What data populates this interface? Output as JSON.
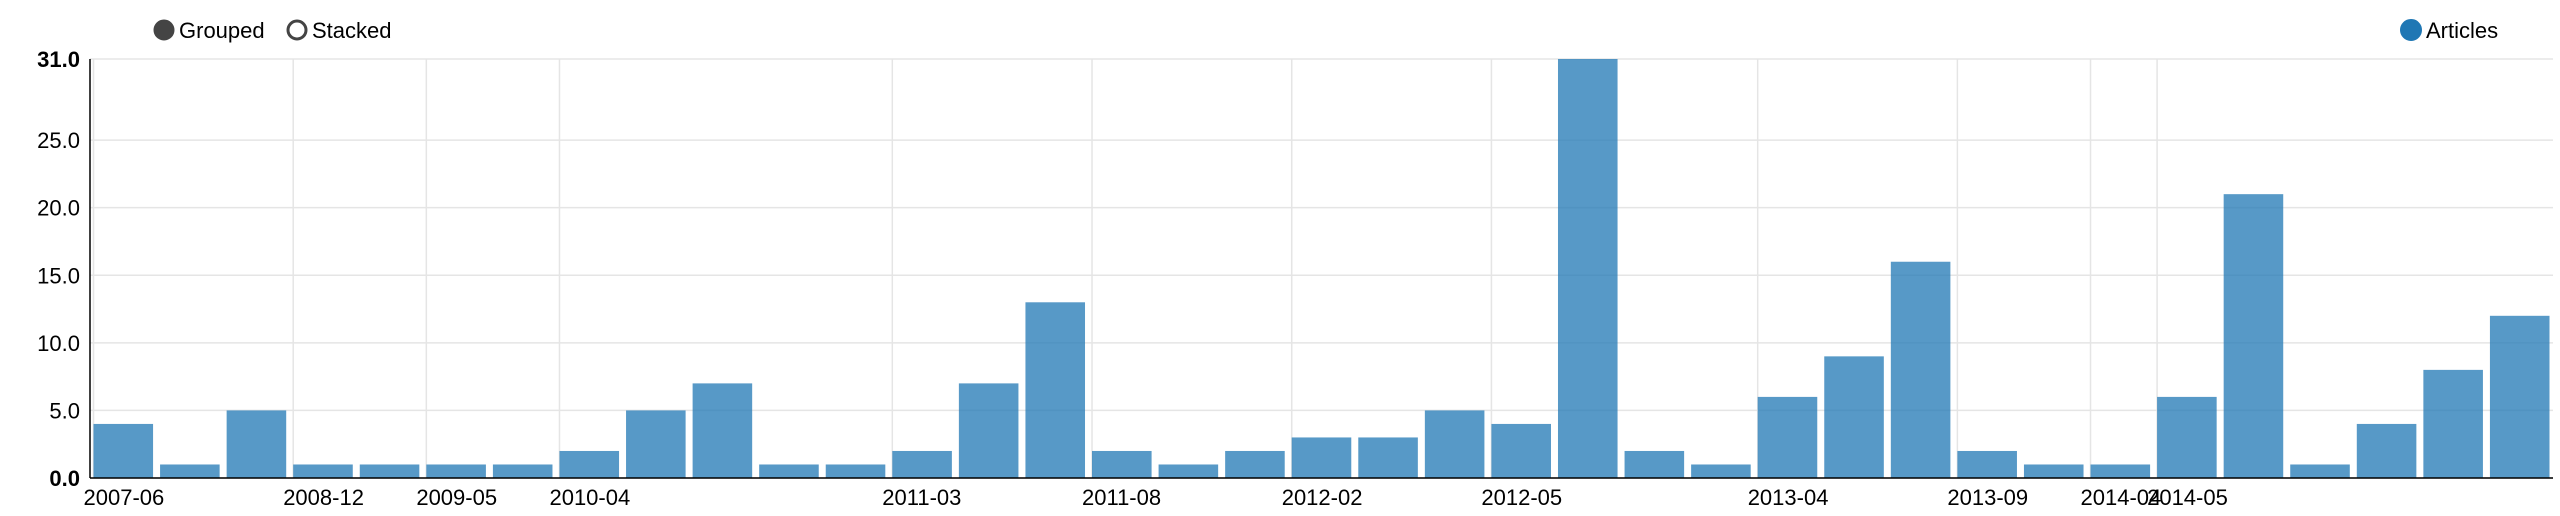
{
  "controls": {
    "grouped_label": "Grouped",
    "stacked_label": "Stacked",
    "selected": "Grouped"
  },
  "legend": {
    "series_label": "Articles",
    "color": "#1f77b4"
  },
  "colors": {
    "bar": "#1f77b4",
    "grid": "#e5e5e5",
    "axis": "#000000"
  },
  "chart_data": {
    "type": "bar",
    "title": "",
    "xlabel": "",
    "ylabel": "",
    "ylim": [
      0,
      31
    ],
    "y_ticks": [
      0,
      5,
      10,
      15,
      20,
      25,
      31
    ],
    "y_tick_labels": [
      "0.0",
      "5.0",
      "10.0",
      "15.0",
      "20.0",
      "25.0",
      "31.0"
    ],
    "grid": true,
    "legend_position": "top-right",
    "x_tick_labels": [
      {
        "index": 0,
        "label": "2007-06"
      },
      {
        "index": 3,
        "label": "2008-12"
      },
      {
        "index": 5,
        "label": "2009-05"
      },
      {
        "index": 7,
        "label": "2010-04"
      },
      {
        "index": 12,
        "label": "2011-03"
      },
      {
        "index": 15,
        "label": "2011-08"
      },
      {
        "index": 18,
        "label": "2012-02"
      },
      {
        "index": 21,
        "label": "2012-05"
      },
      {
        "index": 25,
        "label": "2013-04"
      },
      {
        "index": 28,
        "label": "2013-09"
      },
      {
        "index": 30,
        "label": "2014-04"
      },
      {
        "index": 31,
        "label": "2014-05"
      }
    ],
    "series": [
      {
        "name": "Articles",
        "values": [
          4,
          1,
          5,
          1,
          1,
          1,
          1,
          2,
          5,
          7,
          1,
          1,
          2,
          7,
          13,
          2,
          1,
          2,
          3,
          3,
          5,
          4,
          31,
          2,
          1,
          6,
          9,
          16,
          2,
          1,
          1,
          6,
          21,
          1,
          4,
          8,
          12
        ]
      }
    ]
  }
}
